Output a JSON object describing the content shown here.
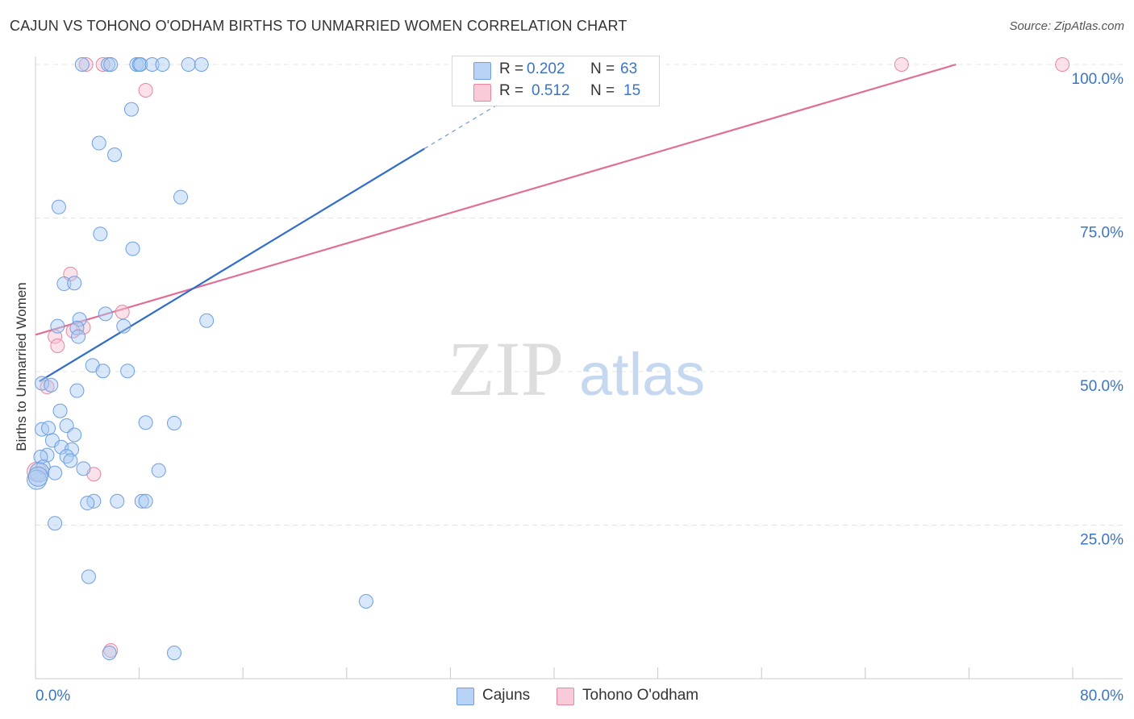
{
  "header": {
    "title": "CAJUN VS TOHONO O'ODHAM BIRTHS TO UNMARRIED WOMEN CORRELATION CHART",
    "source": "Source: ZipAtlas.com"
  },
  "watermark": {
    "zip": "ZIP",
    "atlas": "atlas"
  },
  "legend": {
    "r_label": "R =",
    "n_label": "N =",
    "rows": [
      {
        "name": "Cajuns",
        "r": "0.202",
        "n": "63"
      },
      {
        "name": "Tohono O'odham",
        "r": "0.512",
        "n": "15"
      }
    ]
  },
  "colors": {
    "cajun_fill": "#a9c9f2",
    "cajun_stroke": "#6f9fe0",
    "cajun_line": "#2f6ccc",
    "tohono_fill": "#f7bfd0",
    "tohono_stroke": "#e8869f",
    "tohono_line": "#e06f96",
    "axis_text": "#3a74c8",
    "grid": "#e4e4e4"
  },
  "chart_data": {
    "type": "scatter",
    "title": "CAJUN VS TOHONO O'ODHAM BIRTHS TO UNMARRIED WOMEN CORRELATION CHART",
    "xlabel": "",
    "ylabel": "Births to Unmarried Women",
    "xlim": [
      0,
      80
    ],
    "ylim": [
      0,
      100
    ],
    "x_tick_labels": [
      "0.0%",
      "80.0%"
    ],
    "y_tick_labels": [
      "25.0%",
      "50.0%",
      "75.0%",
      "100.0%"
    ],
    "y_ticks": [
      25,
      50,
      75,
      100
    ],
    "grid": true,
    "series": [
      {
        "name": "Cajuns",
        "r": 0.202,
        "n": 63,
        "points": [
          [
            3.6,
            100
          ],
          [
            5.6,
            100
          ],
          [
            5.8,
            100
          ],
          [
            7.8,
            100
          ],
          [
            8.0,
            100
          ],
          [
            8.1,
            100
          ],
          [
            9.0,
            100
          ],
          [
            9.8,
            100
          ],
          [
            11.8,
            100
          ],
          [
            12.8,
            100
          ],
          [
            7.4,
            92.7
          ],
          [
            4.9,
            87.2
          ],
          [
            6.1,
            85.3
          ],
          [
            11.2,
            78.4
          ],
          [
            1.8,
            76.8
          ],
          [
            5.0,
            72.4
          ],
          [
            7.5,
            70.0
          ],
          [
            2.2,
            64.3
          ],
          [
            3.0,
            64.4
          ],
          [
            13.2,
            58.3
          ],
          [
            5.4,
            59.4
          ],
          [
            1.7,
            57.4
          ],
          [
            3.4,
            58.5
          ],
          [
            3.2,
            57.1
          ],
          [
            6.8,
            57.4
          ],
          [
            3.3,
            55.7
          ],
          [
            4.4,
            51.0
          ],
          [
            5.2,
            50.1
          ],
          [
            7.1,
            50.1
          ],
          [
            0.5,
            48.1
          ],
          [
            1.2,
            47.8
          ],
          [
            3.2,
            46.9
          ],
          [
            1.9,
            43.6
          ],
          [
            0.5,
            40.6
          ],
          [
            1.0,
            40.8
          ],
          [
            2.4,
            41.2
          ],
          [
            8.5,
            41.7
          ],
          [
            10.7,
            41.6
          ],
          [
            3.0,
            39.7
          ],
          [
            1.3,
            38.8
          ],
          [
            2.0,
            37.7
          ],
          [
            2.8,
            37.3
          ],
          [
            0.9,
            36.4
          ],
          [
            0.4,
            36.1
          ],
          [
            2.4,
            36.2
          ],
          [
            2.7,
            35.5
          ],
          [
            0.6,
            34.5
          ],
          [
            3.7,
            34.2
          ],
          [
            9.5,
            33.9
          ],
          [
            0.3,
            33.6
          ],
          [
            1.5,
            33.5
          ],
          [
            0.1,
            32.4
          ],
          [
            0.2,
            32.9
          ],
          [
            6.3,
            28.9
          ],
          [
            4.5,
            28.9
          ],
          [
            4.0,
            28.6
          ],
          [
            8.2,
            28.9
          ],
          [
            8.5,
            28.9
          ],
          [
            1.5,
            25.3
          ],
          [
            4.1,
            16.6
          ],
          [
            25.5,
            12.6
          ],
          [
            5.7,
            4.2
          ],
          [
            10.7,
            4.2
          ]
        ],
        "trend": {
          "x": [
            0.3,
            30.0
          ],
          "y": [
            48.4,
            86.3
          ]
        },
        "trend_dashed": {
          "x": [
            30.0,
            37.0
          ],
          "y": [
            86.3,
            95.2
          ]
        }
      },
      {
        "name": "Tohono O'odham",
        "r": 0.512,
        "n": 15,
        "points": [
          [
            3.9,
            100
          ],
          [
            5.2,
            100
          ],
          [
            66.8,
            100
          ],
          [
            79.2,
            100
          ],
          [
            8.5,
            95.8
          ],
          [
            2.7,
            65.9
          ],
          [
            6.7,
            59.7
          ],
          [
            3.7,
            57.2
          ],
          [
            2.9,
            56.6
          ],
          [
            1.5,
            55.7
          ],
          [
            1.7,
            54.2
          ],
          [
            0.9,
            47.5
          ],
          [
            4.5,
            33.3
          ],
          [
            0.1,
            33.7
          ],
          [
            5.8,
            4.6
          ]
        ],
        "trend": {
          "x": [
            0.0,
            71.0
          ],
          "y": [
            56.0,
            100.0
          ]
        }
      }
    ]
  }
}
